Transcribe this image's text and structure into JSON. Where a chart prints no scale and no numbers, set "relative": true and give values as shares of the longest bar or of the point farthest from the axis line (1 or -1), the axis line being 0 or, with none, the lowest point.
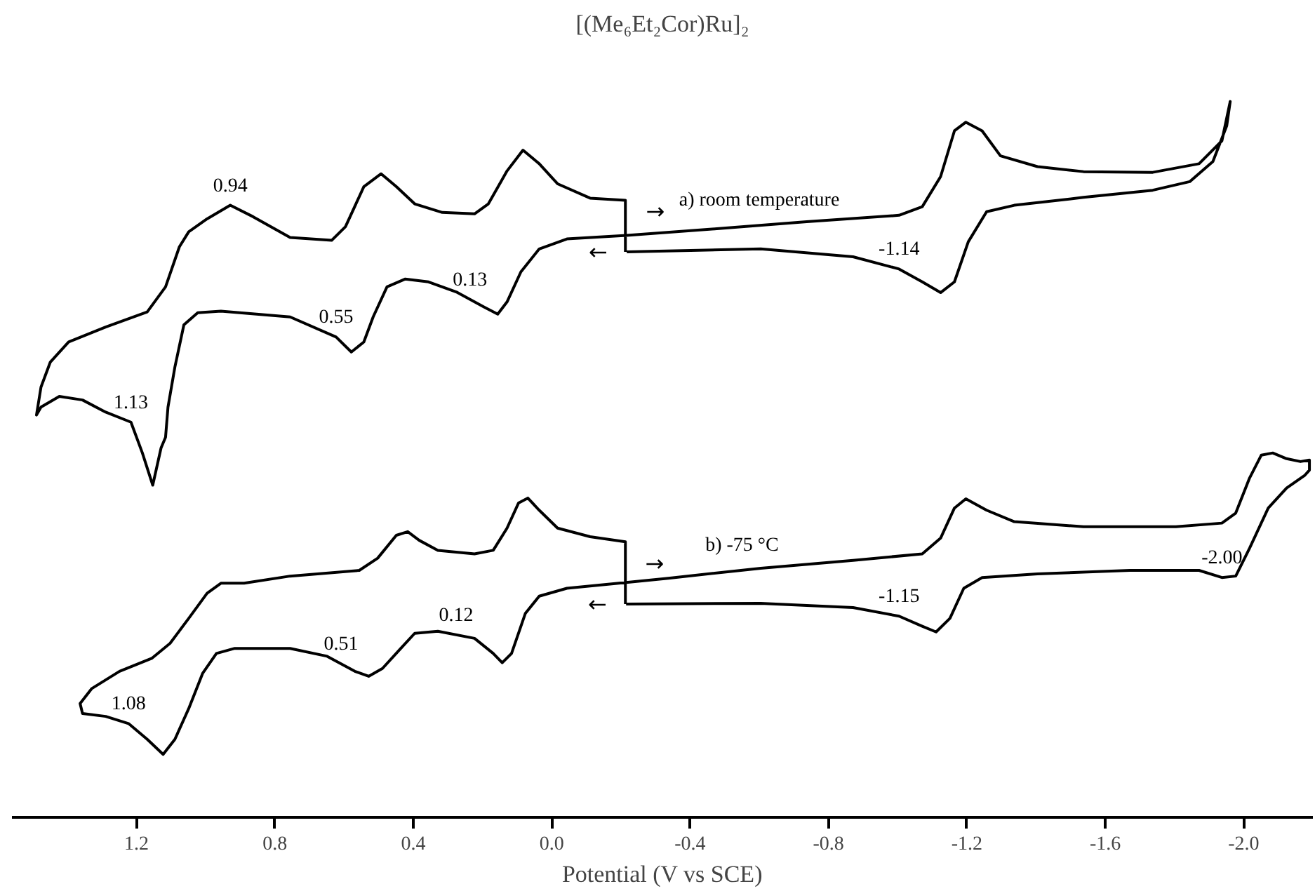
{
  "chart_data": {
    "type": "line",
    "relative": true,
    "title": "[(Me₆Et₂Cor)Ru]₂",
    "xlabel": "Potential (V vs SCE)",
    "xlim": [
      1.56,
      -2.2
    ],
    "xticks": [
      {
        "value": 1.2,
        "label": "1.2"
      },
      {
        "value": 0.8,
        "label": "0.8"
      },
      {
        "value": 0.4,
        "label": "0.4"
      },
      {
        "value": 0.0,
        "label": "0.0"
      },
      {
        "value": -0.4,
        "label": "-0.4"
      },
      {
        "value": -0.8,
        "label": "-0.8"
      },
      {
        "value": -1.2,
        "label": "-1.2"
      },
      {
        "value": -1.6,
        "label": "-1.6"
      },
      {
        "value": -2.0,
        "label": "-2.0"
      }
    ],
    "grid": false,
    "tick_labels": "x",
    "line_style": "solid",
    "marker": "none",
    "series": [
      {
        "color": "#000000",
        "x": [
          -0.217,
          -0.604,
          -0.871,
          -1.004,
          -1.071,
          -1.124,
          -1.164,
          -1.204,
          -1.257,
          -1.337,
          -1.537,
          -1.737,
          -1.844,
          -1.911,
          -1.951,
          -1.961,
          -1.937,
          -1.871,
          -1.737,
          -1.537,
          -1.404,
          -1.297,
          -1.244,
          -1.197,
          -1.164,
          -1.124,
          -1.071,
          -1.004,
          -0.737,
          -0.471,
          -0.217,
          -0.044,
          0.036,
          0.089,
          0.129,
          0.156,
          0.196,
          0.276,
          0.356,
          0.423,
          0.476,
          0.516,
          0.543,
          0.579,
          0.623,
          0.756,
          0.956,
          1.023,
          1.063,
          1.089,
          1.109,
          1.116,
          1.129,
          1.153,
          1.183,
          1.216,
          1.289,
          1.356,
          1.423,
          1.476,
          1.489,
          1.476,
          1.449,
          1.396,
          1.289,
          1.169,
          1.116,
          1.076,
          1.049,
          0.996,
          0.929,
          0.863,
          0.756,
          0.636,
          0.596,
          0.543,
          0.493,
          0.449,
          0.396,
          0.316,
          0.223,
          0.183,
          0.129,
          0.083,
          0.036,
          -0.017,
          -0.111,
          -0.213,
          -0.213
        ],
        "values": [
          0.79,
          0.794,
          0.783,
          0.766,
          0.748,
          0.733,
          0.748,
          0.804,
          0.846,
          0.855,
          0.866,
          0.876,
          0.888,
          0.916,
          0.966,
          1.0,
          0.945,
          0.913,
          0.901,
          0.902,
          0.909,
          0.924,
          0.959,
          0.971,
          0.959,
          0.895,
          0.853,
          0.841,
          0.832,
          0.822,
          0.813,
          0.808,
          0.794,
          0.762,
          0.72,
          0.703,
          0.713,
          0.734,
          0.748,
          0.752,
          0.741,
          0.699,
          0.664,
          0.65,
          0.671,
          0.699,
          0.707,
          0.705,
          0.688,
          0.629,
          0.573,
          0.531,
          0.516,
          0.464,
          0.509,
          0.552,
          0.566,
          0.583,
          0.588,
          0.573,
          0.562,
          0.601,
          0.636,
          0.664,
          0.685,
          0.706,
          0.741,
          0.797,
          0.818,
          0.836,
          0.855,
          0.839,
          0.81,
          0.806,
          0.825,
          0.881,
          0.899,
          0.881,
          0.857,
          0.845,
          0.843,
          0.857,
          0.903,
          0.932,
          0.913,
          0.885,
          0.865,
          0.862,
          0.79
        ]
      },
      {
        "color": "#000000",
        "x": [
          -0.215,
          -0.604,
          -0.871,
          -1.004,
          -1.071,
          -1.111,
          -1.151,
          -1.191,
          -1.244,
          -1.404,
          -1.671,
          -1.871,
          -1.937,
          -1.977,
          -2.017,
          -2.071,
          -2.124,
          -2.177,
          -2.19,
          -2.19,
          -2.164,
          -2.124,
          -2.084,
          -2.051,
          -2.017,
          -1.977,
          -1.937,
          -1.804,
          -1.537,
          -1.337,
          -1.257,
          -1.197,
          -1.164,
          -1.124,
          -1.071,
          -0.871,
          -0.604,
          -0.337,
          -0.215,
          -0.044,
          0.036,
          0.076,
          0.116,
          0.143,
          0.169,
          0.223,
          0.329,
          0.396,
          0.436,
          0.489,
          0.529,
          0.569,
          0.649,
          0.756,
          0.916,
          0.969,
          1.009,
          1.049,
          1.089,
          1.123,
          1.169,
          1.223,
          1.289,
          1.356,
          1.363,
          1.329,
          1.249,
          1.156,
          1.103,
          1.049,
          0.996,
          0.956,
          0.889,
          0.756,
          0.556,
          0.503,
          0.449,
          0.416,
          0.383,
          0.329,
          0.223,
          0.169,
          0.129,
          0.096,
          0.069,
          0.036,
          -0.017,
          -0.111,
          -0.213,
          -0.213
        ],
        "values": [
          0.298,
          0.299,
          0.293,
          0.281,
          0.267,
          0.259,
          0.278,
          0.32,
          0.335,
          0.34,
          0.345,
          0.345,
          0.335,
          0.337,
          0.376,
          0.432,
          0.46,
          0.478,
          0.485,
          0.499,
          0.497,
          0.501,
          0.509,
          0.506,
          0.474,
          0.425,
          0.411,
          0.406,
          0.406,
          0.413,
          0.429,
          0.445,
          0.432,
          0.39,
          0.368,
          0.359,
          0.348,
          0.334,
          0.328,
          0.32,
          0.309,
          0.285,
          0.229,
          0.216,
          0.229,
          0.25,
          0.26,
          0.257,
          0.236,
          0.208,
          0.197,
          0.204,
          0.225,
          0.236,
          0.236,
          0.229,
          0.201,
          0.152,
          0.109,
          0.088,
          0.109,
          0.131,
          0.141,
          0.145,
          0.159,
          0.18,
          0.204,
          0.222,
          0.243,
          0.278,
          0.313,
          0.327,
          0.327,
          0.337,
          0.345,
          0.362,
          0.394,
          0.399,
          0.387,
          0.373,
          0.368,
          0.373,
          0.404,
          0.439,
          0.446,
          0.429,
          0.404,
          0.392,
          0.385,
          0.298
        ]
      }
    ],
    "annotations": [
      {
        "text": "a) room temperature",
        "x": -0.6,
        "y": 0.827
      },
      {
        "text": "0.94",
        "x": 0.929,
        "y": 0.855
      },
      {
        "text": "1.13",
        "x": 1.216,
        "y": 0.552
      },
      {
        "text": "0.55",
        "x": 0.623,
        "y": 0.671
      },
      {
        "text": "0.13",
        "x": 0.236,
        "y": 0.7235
      },
      {
        "text": "-1.14",
        "x": -1.004,
        "y": 0.766
      },
      "→",
      "←",
      {
        "text": "b) -75 °C",
        "x": -0.55,
        "y": 0.345
      },
      {
        "text": "1.08",
        "x": 1.223,
        "y": 0.131
      },
      {
        "text": "0.51",
        "x": 0.609,
        "y": 0.2145
      },
      {
        "text": "0.12",
        "x": 0.276,
        "y": 0.255
      },
      {
        "text": "-1.15",
        "x": -1.004,
        "y": 0.281
      },
      {
        "text": "-2.00",
        "x": -1.937,
        "y": 0.335
      },
      "→",
      "←"
    ]
  }
}
